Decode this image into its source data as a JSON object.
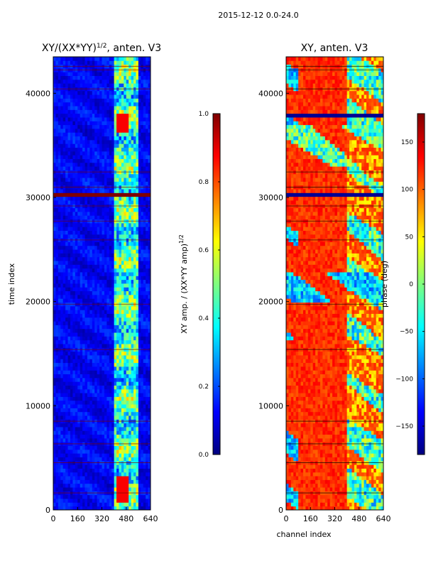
{
  "figure_title": "2015-12-12 0.0-24.0",
  "colors": {
    "jet": [
      "#00007f",
      "#0000ff",
      "#007fff",
      "#00ffff",
      "#7fff7f",
      "#ffff00",
      "#ff7f00",
      "#ff0000",
      "#7f0000"
    ],
    "axis": "#000000",
    "background": "#ffffff"
  },
  "chart_data": [
    {
      "type": "heatmap",
      "title": "XY/(XX*YY)^{1/2}, anten. V3",
      "title_main": "XY/(XX*YY)",
      "title_exp": "1/2",
      "title_tail": ", anten. V3",
      "xlabel": "",
      "ylabel": "time index",
      "xlim": [
        0,
        640
      ],
      "ylim": [
        0,
        43500
      ],
      "xticks": [
        0,
        160,
        320,
        480,
        640
      ],
      "yticks": [
        0,
        10000,
        20000,
        30000,
        40000
      ],
      "colorbar": {
        "label": "XY amp. / (XX*YY amp)^{1/2}",
        "label_main": "XY amp. / (XX*YY amp)",
        "label_exp": "1/2",
        "range": [
          0.0,
          1.0
        ],
        "ticks": [
          "0.0",
          "0.2",
          "0.4",
          "0.6",
          "0.8",
          "1.0"
        ]
      },
      "description_of_values": "mostly low amplitude (~0.1) across channels; elevated amplitude (0.4-0.9) in channel band ~400-560; saturated flagged stripe near time index 30400",
      "bright_band_channels": [
        400,
        560
      ],
      "hot_spots_time_index": [
        1500,
        2500,
        37000
      ],
      "flagged_rows_time_index": [
        30400
      ]
    },
    {
      "type": "heatmap",
      "title": "XY, anten. V3",
      "xlabel": "channel index",
      "ylabel": "",
      "xlim": [
        0,
        640
      ],
      "ylim": [
        0,
        43500
      ],
      "xticks": [
        0,
        160,
        320,
        480,
        640
      ],
      "yticks": [
        0,
        10000,
        20000,
        30000,
        40000
      ],
      "colorbar": {
        "label": "phase (deg)",
        "range": [
          -180,
          180
        ],
        "ticks": [
          "150",
          "100",
          "50",
          "0",
          "−50",
          "−100",
          "−150"
        ]
      },
      "description_of_values": "phase mostly ~120 deg (orange/red) with blue/cyan wrap regions near channels 0-80 and 400-640; dark flagged stripe near time index 30400",
      "flagged_rows_time_index": [
        30400,
        37800
      ]
    }
  ]
}
